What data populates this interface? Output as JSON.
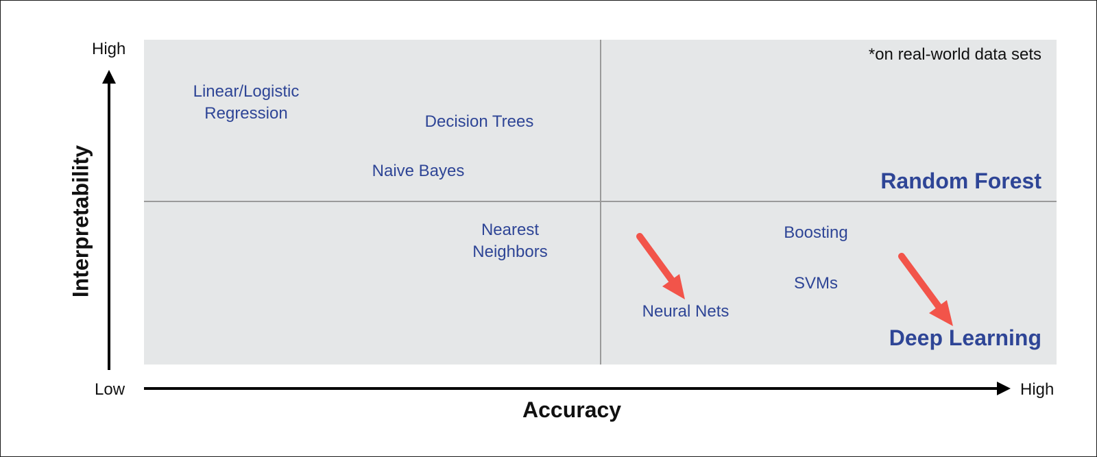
{
  "axes": {
    "y_title": "Interpretability",
    "y_high": "High",
    "y_low": "Low",
    "x_title": "Accuracy",
    "x_high": "High"
  },
  "note": "*on real-world data sets",
  "algorithms": {
    "linear_logistic_line1": "Linear/Logistic",
    "linear_logistic_line2": "Regression",
    "decision_trees": "Decision Trees",
    "naive_bayes": "Naive Bayes",
    "nearest_neighbors_line1": "Nearest",
    "nearest_neighbors_line2": "Neighbors",
    "random_forest": "Random Forest",
    "boosting": "Boosting",
    "svms": "SVMs",
    "neural_nets": "Neural Nets",
    "deep_learning": "Deep Learning"
  },
  "colors": {
    "label_blue": "#2e4596",
    "arrow_red": "#f2544a",
    "quadrant_fill": "#e5e7e8",
    "divider_gray": "#9a9a9a"
  }
}
